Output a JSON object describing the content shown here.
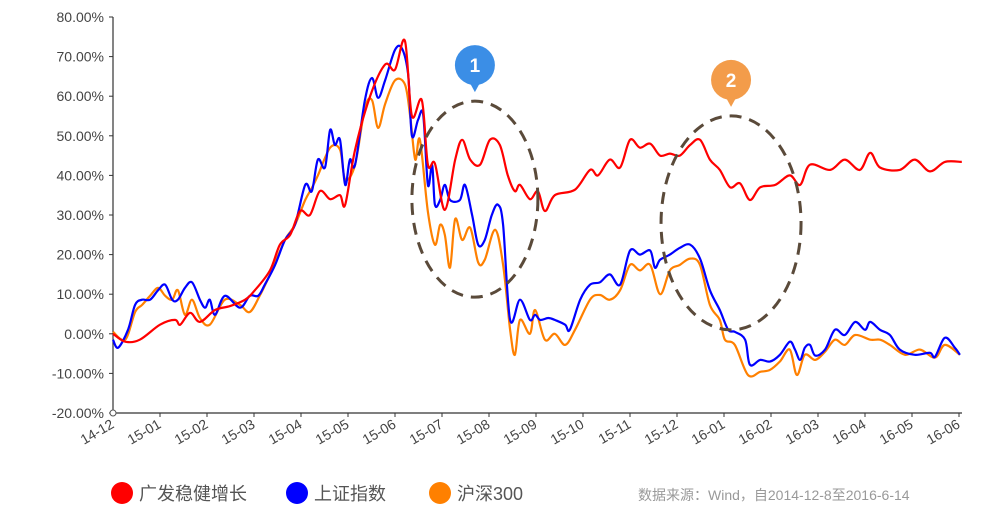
{
  "chart_data": {
    "type": "line",
    "title": "",
    "xlabel": "",
    "ylabel": "",
    "x_unit": "months since 14-12 (0 = 14-12)",
    "categories": [
      "14-12",
      "15-01",
      "15-02",
      "15-03",
      "15-04",
      "15-05",
      "15-06",
      "15-07",
      "15-08",
      "15-09",
      "15-10",
      "15-11",
      "15-12",
      "16-01",
      "16-02",
      "16-03",
      "16-04",
      "16-05",
      "16-06"
    ],
    "xlim": [
      0,
      18.06
    ],
    "ylim": [
      -20,
      80
    ],
    "yticks": [
      "-20.00%",
      "-10.00%",
      "0.00%",
      "10.00%",
      "20.00%",
      "30.00%",
      "40.00%",
      "50.00%",
      "60.00%",
      "70.00%",
      "80.00%"
    ],
    "ytick_values": [
      -20,
      -10,
      0,
      10,
      20,
      30,
      40,
      50,
      60,
      70,
      80
    ],
    "grid": false,
    "legend_position": "bottom-left",
    "series": [
      {
        "name": "广发稳健增长",
        "color": "#ff0000",
        "points": [
          [
            0,
            0
          ],
          [
            0.26,
            -2
          ],
          [
            0.57,
            -1.5
          ],
          [
            1.0,
            2.3
          ],
          [
            1.32,
            3.5
          ],
          [
            1.43,
            2.3
          ],
          [
            1.64,
            5.3
          ],
          [
            1.85,
            3
          ],
          [
            2.17,
            6
          ],
          [
            2.49,
            7
          ],
          [
            2.81,
            8.6
          ],
          [
            3.02,
            11
          ],
          [
            3.34,
            16
          ],
          [
            3.55,
            22.5
          ],
          [
            3.77,
            25
          ],
          [
            3.98,
            31
          ],
          [
            4.19,
            30
          ],
          [
            4.4,
            36
          ],
          [
            4.62,
            34
          ],
          [
            4.83,
            35
          ],
          [
            4.94,
            32.6
          ],
          [
            5.15,
            46.5
          ],
          [
            5.47,
            60
          ],
          [
            5.79,
            68
          ],
          [
            6.0,
            66.7
          ],
          [
            6.21,
            74
          ],
          [
            6.36,
            55
          ],
          [
            6.57,
            59
          ],
          [
            6.7,
            42.7
          ],
          [
            6.85,
            43
          ],
          [
            7.06,
            31.3
          ],
          [
            7.28,
            44
          ],
          [
            7.43,
            49
          ],
          [
            7.6,
            44
          ],
          [
            7.81,
            42.7
          ],
          [
            8.02,
            49
          ],
          [
            8.23,
            47.7
          ],
          [
            8.4,
            40
          ],
          [
            8.55,
            36
          ],
          [
            8.66,
            37.6
          ],
          [
            8.87,
            34
          ],
          [
            9.04,
            36
          ],
          [
            9.19,
            31
          ],
          [
            9.4,
            35
          ],
          [
            9.83,
            36.4
          ],
          [
            10.15,
            41.4
          ],
          [
            10.32,
            40
          ],
          [
            10.57,
            44
          ],
          [
            10.79,
            42
          ],
          [
            11.0,
            49
          ],
          [
            11.21,
            47
          ],
          [
            11.43,
            48
          ],
          [
            11.64,
            45
          ],
          [
            11.85,
            45.5
          ],
          [
            12.06,
            45
          ],
          [
            12.28,
            47.7
          ],
          [
            12.49,
            49
          ],
          [
            12.7,
            44
          ],
          [
            12.91,
            41.4
          ],
          [
            13.13,
            37
          ],
          [
            13.34,
            38
          ],
          [
            13.55,
            33.8
          ],
          [
            13.77,
            37
          ],
          [
            14.09,
            37.6
          ],
          [
            14.4,
            40
          ],
          [
            14.62,
            37.6
          ],
          [
            14.83,
            42.7
          ],
          [
            15.26,
            41.4
          ],
          [
            15.57,
            44
          ],
          [
            15.89,
            41.4
          ],
          [
            16.11,
            45.7
          ],
          [
            16.32,
            42
          ],
          [
            16.74,
            41.4
          ],
          [
            17.06,
            44
          ],
          [
            17.38,
            41
          ],
          [
            17.7,
            43.4
          ],
          [
            18.06,
            43.4
          ]
        ]
      },
      {
        "name": "上证指数",
        "color": "#0000ff",
        "points": [
          [
            0,
            -1.5
          ],
          [
            0.11,
            -3.5
          ],
          [
            0.32,
            1
          ],
          [
            0.47,
            7.3
          ],
          [
            0.62,
            8.6
          ],
          [
            0.79,
            8.6
          ],
          [
            0.96,
            11
          ],
          [
            1.11,
            12.4
          ],
          [
            1.26,
            8.6
          ],
          [
            1.38,
            8.6
          ],
          [
            1.53,
            11.6
          ],
          [
            1.68,
            13
          ],
          [
            1.85,
            8.6
          ],
          [
            1.96,
            6.6
          ],
          [
            2.06,
            8.6
          ],
          [
            2.17,
            4.8
          ],
          [
            2.38,
            9.6
          ],
          [
            2.7,
            6.6
          ],
          [
            2.91,
            9.6
          ],
          [
            3.09,
            9.6
          ],
          [
            3.23,
            12.4
          ],
          [
            3.45,
            17.4
          ],
          [
            3.66,
            23.7
          ],
          [
            3.87,
            27.5
          ],
          [
            4.09,
            37.6
          ],
          [
            4.23,
            36
          ],
          [
            4.36,
            44
          ],
          [
            4.51,
            42
          ],
          [
            4.62,
            51.5
          ],
          [
            4.72,
            47.7
          ],
          [
            4.83,
            49
          ],
          [
            4.94,
            37.6
          ],
          [
            5.04,
            44
          ],
          [
            5.15,
            42.7
          ],
          [
            5.36,
            59
          ],
          [
            5.51,
            64.6
          ],
          [
            5.64,
            59.6
          ],
          [
            5.79,
            64
          ],
          [
            6.0,
            71.7
          ],
          [
            6.15,
            72
          ],
          [
            6.28,
            65.4
          ],
          [
            6.36,
            50
          ],
          [
            6.49,
            54
          ],
          [
            6.6,
            55.3
          ],
          [
            6.7,
            37.6
          ],
          [
            6.79,
            42.7
          ],
          [
            6.85,
            32.6
          ],
          [
            6.96,
            33.8
          ],
          [
            7.06,
            37.6
          ],
          [
            7.17,
            33.8
          ],
          [
            7.38,
            33.8
          ],
          [
            7.49,
            37.6
          ],
          [
            7.64,
            30
          ],
          [
            7.77,
            22.5
          ],
          [
            7.91,
            23.7
          ],
          [
            8.06,
            30
          ],
          [
            8.19,
            32.6
          ],
          [
            8.3,
            27.5
          ],
          [
            8.45,
            3.5
          ],
          [
            8.66,
            8.6
          ],
          [
            8.87,
            3.5
          ],
          [
            8.98,
            4.8
          ],
          [
            9.09,
            3.5
          ],
          [
            9.26,
            4
          ],
          [
            9.4,
            3.5
          ],
          [
            9.62,
            2.3
          ],
          [
            9.72,
            1
          ],
          [
            9.94,
            8.6
          ],
          [
            10.15,
            12.4
          ],
          [
            10.36,
            13
          ],
          [
            10.57,
            15
          ],
          [
            10.79,
            12.4
          ],
          [
            11.0,
            21
          ],
          [
            11.21,
            20
          ],
          [
            11.43,
            21
          ],
          [
            11.53,
            16.7
          ],
          [
            11.64,
            18.7
          ],
          [
            11.85,
            20
          ],
          [
            12.06,
            21.7
          ],
          [
            12.28,
            22.5
          ],
          [
            12.49,
            19
          ],
          [
            12.7,
            11
          ],
          [
            12.91,
            6
          ],
          [
            13.09,
            1
          ],
          [
            13.23,
            0.5
          ],
          [
            13.45,
            -1.5
          ],
          [
            13.55,
            -7.8
          ],
          [
            13.77,
            -6.6
          ],
          [
            13.98,
            -7
          ],
          [
            14.19,
            -5.3
          ],
          [
            14.4,
            -2
          ],
          [
            14.51,
            -4
          ],
          [
            14.62,
            -6.6
          ],
          [
            14.72,
            -3.5
          ],
          [
            14.83,
            -2.8
          ],
          [
            14.94,
            -5.5
          ],
          [
            15.15,
            -4
          ],
          [
            15.36,
            1
          ],
          [
            15.57,
            -0.3
          ],
          [
            15.79,
            3
          ],
          [
            16.0,
            1
          ],
          [
            16.11,
            3
          ],
          [
            16.32,
            1
          ],
          [
            16.53,
            -0.3
          ],
          [
            16.74,
            -4
          ],
          [
            17.06,
            -5.3
          ],
          [
            17.38,
            -4.8
          ],
          [
            17.49,
            -5.8
          ],
          [
            17.7,
            -1
          ],
          [
            17.91,
            -3.5
          ],
          [
            18.02,
            -5.3
          ]
        ]
      },
      {
        "name": "沪深300",
        "color": "#ff8000",
        "points": [
          [
            0,
            0.5
          ],
          [
            0.26,
            -1.5
          ],
          [
            0.47,
            5.5
          ],
          [
            0.62,
            7.3
          ],
          [
            0.79,
            9.6
          ],
          [
            0.96,
            11.6
          ],
          [
            1.11,
            9.6
          ],
          [
            1.26,
            8.6
          ],
          [
            1.38,
            11
          ],
          [
            1.53,
            4.8
          ],
          [
            1.68,
            8.6
          ],
          [
            1.85,
            4
          ],
          [
            2.06,
            2.3
          ],
          [
            2.38,
            8.6
          ],
          [
            2.7,
            7.3
          ],
          [
            2.91,
            5.5
          ],
          [
            3.13,
            9.8
          ],
          [
            3.34,
            15
          ],
          [
            3.66,
            23.7
          ],
          [
            3.87,
            27.5
          ],
          [
            4.09,
            33.8
          ],
          [
            4.23,
            36.8
          ],
          [
            4.36,
            40
          ],
          [
            4.62,
            47
          ],
          [
            4.83,
            46.5
          ],
          [
            4.94,
            39
          ],
          [
            5.15,
            42.7
          ],
          [
            5.36,
            57
          ],
          [
            5.51,
            59
          ],
          [
            5.64,
            52
          ],
          [
            5.79,
            58
          ],
          [
            6.0,
            64
          ],
          [
            6.21,
            63
          ],
          [
            6.32,
            55.3
          ],
          [
            6.43,
            44
          ],
          [
            6.53,
            49
          ],
          [
            6.7,
            30.8
          ],
          [
            6.85,
            22.5
          ],
          [
            6.96,
            27.5
          ],
          [
            7.06,
            25
          ],
          [
            7.17,
            16.7
          ],
          [
            7.28,
            29
          ],
          [
            7.43,
            23.7
          ],
          [
            7.6,
            26.8
          ],
          [
            7.77,
            18
          ],
          [
            7.91,
            18.7
          ],
          [
            8.13,
            26.3
          ],
          [
            8.3,
            17.4
          ],
          [
            8.45,
            1
          ],
          [
            8.55,
            -5.3
          ],
          [
            8.66,
            3.5
          ],
          [
            8.87,
            0
          ],
          [
            8.98,
            6
          ],
          [
            9.19,
            -1.5
          ],
          [
            9.4,
            0
          ],
          [
            9.62,
            -2.8
          ],
          [
            9.83,
            1
          ],
          [
            10.15,
            8.6
          ],
          [
            10.36,
            9.8
          ],
          [
            10.57,
            8.6
          ],
          [
            10.79,
            11
          ],
          [
            11.0,
            17.4
          ],
          [
            11.21,
            16
          ],
          [
            11.43,
            17.4
          ],
          [
            11.64,
            10
          ],
          [
            11.85,
            16
          ],
          [
            12.06,
            17.4
          ],
          [
            12.28,
            19
          ],
          [
            12.49,
            17.4
          ],
          [
            12.7,
            7.3
          ],
          [
            12.91,
            3.5
          ],
          [
            13.02,
            -1.5
          ],
          [
            13.23,
            -2.8
          ],
          [
            13.51,
            -10.4
          ],
          [
            13.77,
            -9.6
          ],
          [
            13.98,
            -9.1
          ],
          [
            14.19,
            -7
          ],
          [
            14.4,
            -4
          ],
          [
            14.55,
            -10.4
          ],
          [
            14.72,
            -5.3
          ],
          [
            14.94,
            -6.6
          ],
          [
            15.15,
            -4.5
          ],
          [
            15.36,
            -1.5
          ],
          [
            15.57,
            -2.8
          ],
          [
            15.79,
            -0.3
          ],
          [
            16.11,
            -1.5
          ],
          [
            16.32,
            -1.5
          ],
          [
            16.53,
            -2.8
          ],
          [
            16.85,
            -5.3
          ],
          [
            17.17,
            -4
          ],
          [
            17.49,
            -6
          ],
          [
            17.7,
            -2.8
          ],
          [
            18.02,
            -5.3
          ]
        ]
      }
    ],
    "annotations": [
      {
        "label": "1",
        "color": "#3b8ee6",
        "x": 7.7,
        "y": 34
      },
      {
        "label": "2",
        "color": "#f39c4a",
        "x": 13.15,
        "y": 28
      }
    ]
  },
  "legend": [
    {
      "label": "广发稳健增长",
      "color": "#ff0000"
    },
    {
      "label": "上证指数",
      "color": "#0000ff"
    },
    {
      "label": "沪深300",
      "color": "#ff8000"
    }
  ],
  "source": "数据来源：Wind，自2014-12-8至2016-6-14"
}
